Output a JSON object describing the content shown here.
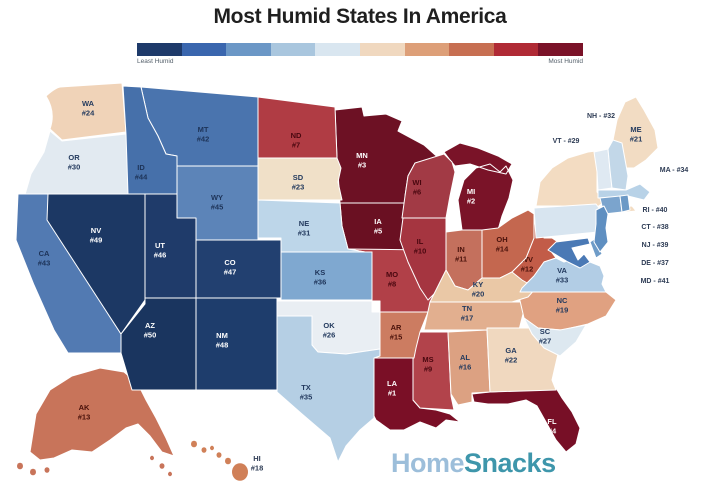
{
  "title": "Most Humid States In America",
  "legend": {
    "least_label": "Least Humid",
    "most_label": "Most Humid",
    "colors": [
      "#1e3a6a",
      "#3a66ae",
      "#6b97c6",
      "#a9c6de",
      "#d9e6f0",
      "#f0d8bf",
      "#dd9f78",
      "#c76f52",
      "#b02a35",
      "#7a1228"
    ]
  },
  "watermark": {
    "home": "Home",
    "snacks": "Snacks",
    "home_color": "#9cbeda",
    "snacks_color": "#3e96ab"
  },
  "map": {
    "states": [
      {
        "abbr": "LA",
        "rank": 1,
        "fill": "#7a0f26",
        "label_color": "#ffffff",
        "label": "inside"
      },
      {
        "abbr": "MI",
        "rank": 2,
        "fill": "#7a1328",
        "label_color": "#ffffff",
        "label": "inside"
      },
      {
        "abbr": "MN",
        "rank": 3,
        "fill": "#6d1124",
        "label_color": "#ffffff",
        "label": "inside"
      },
      {
        "abbr": "FL",
        "rank": 4,
        "fill": "#770f26",
        "label_color": "#ffffff",
        "label": "inside"
      },
      {
        "abbr": "IA",
        "rank": 5,
        "fill": "#6a1022",
        "label_color": "#ffffff",
        "label": "inside"
      },
      {
        "abbr": "WI",
        "rank": 6,
        "fill": "#a23a45",
        "label_color": "#49070f",
        "label": "inside"
      },
      {
        "abbr": "ND",
        "rank": 7,
        "fill": "#b03c44",
        "label_color": "#49070f",
        "label": "inside"
      },
      {
        "abbr": "MO",
        "rank": 8,
        "fill": "#b14048",
        "label_color": "#49070f",
        "label": "inside"
      },
      {
        "abbr": "MS",
        "rank": 9,
        "fill": "#b2434b",
        "label_color": "#49070f",
        "label": "inside"
      },
      {
        "abbr": "IL",
        "rank": 10,
        "fill": "#a53540",
        "label_color": "#49070f",
        "label": "inside"
      },
      {
        "abbr": "IN",
        "rank": 11,
        "fill": "#c4705d",
        "label_color": "#4a120b",
        "label": "inside"
      },
      {
        "abbr": "WV",
        "rank": 12,
        "fill": "#c25c48",
        "label_color": "#4a120b",
        "label": "inside"
      },
      {
        "abbr": "AK",
        "rank": 13,
        "fill": "#c8745a",
        "label_color": "#4a120b",
        "label": "inside"
      },
      {
        "abbr": "OH",
        "rank": 14,
        "fill": "#c4674f",
        "label_color": "#4a120b",
        "label": "inside"
      },
      {
        "abbr": "AR",
        "rank": 15,
        "fill": "#cc7c61",
        "label_color": "#4a120b",
        "label": "inside"
      },
      {
        "abbr": "AL",
        "rank": 16,
        "fill": "#dca182",
        "label_color": "#233a5e",
        "label": "inside"
      },
      {
        "abbr": "TN",
        "rank": 17,
        "fill": "#e2af8f",
        "label_color": "#233a5e",
        "label": "inside"
      },
      {
        "abbr": "HI",
        "rank": 18,
        "fill": "#d08058",
        "label_color": "#2e3c55",
        "label": "inside"
      },
      {
        "abbr": "NC",
        "rank": 19,
        "fill": "#e0a181",
        "label_color": "#233a5e",
        "label": "inside"
      },
      {
        "abbr": "KY",
        "rank": 20,
        "fill": "#eac8a6",
        "label_color": "#233a5e",
        "label": "inside"
      },
      {
        "abbr": "ME",
        "rank": 21,
        "fill": "#f2dcc3",
        "label_color": "#233a5e",
        "label": "inside"
      },
      {
        "abbr": "GA",
        "rank": 22,
        "fill": "#f0d8bf",
        "label_color": "#233a5e",
        "label": "inside"
      },
      {
        "abbr": "SD",
        "rank": 23,
        "fill": "#f0e0c8",
        "label_color": "#233a5e",
        "label": "inside"
      },
      {
        "abbr": "WA",
        "rank": 24,
        "fill": "#f0d3b8",
        "label_color": "#233a5e",
        "label": "inside"
      },
      {
        "abbr": "NY",
        "rank": 25,
        "fill": "#f3dcc2",
        "label_color": "#233a5e",
        "label": "inside"
      },
      {
        "abbr": "OK",
        "rank": 26,
        "fill": "#e9eef3",
        "label_color": "#233a5e",
        "label": "inside"
      },
      {
        "abbr": "SC",
        "rank": 27,
        "fill": "#dde8f0",
        "label_color": "#233a5e",
        "label": "inside"
      },
      {
        "abbr": "PA",
        "rank": 28,
        "fill": "#d8e5f0",
        "label_color": "#233a5e",
        "label": "inside"
      },
      {
        "abbr": "VT",
        "rank": 29,
        "fill": "#dfe9f2",
        "label_color": "#2e3c55",
        "label": "outside"
      },
      {
        "abbr": "OR",
        "rank": 30,
        "fill": "#e2eaf1",
        "label_color": "#233a5e",
        "label": "inside"
      },
      {
        "abbr": "NE",
        "rank": 31,
        "fill": "#bdd6e9",
        "label_color": "#233a5e",
        "label": "inside"
      },
      {
        "abbr": "NH",
        "rank": 32,
        "fill": "#c2d7e8",
        "label_color": "#2e3c55",
        "label": "outside"
      },
      {
        "abbr": "VA",
        "rank": 33,
        "fill": "#b2cde5",
        "label_color": "#233a5e",
        "label": "inside"
      },
      {
        "abbr": "MA",
        "rank": 34,
        "fill": "#b8d2e7",
        "label_color": "#2e3c55",
        "label": "outside"
      },
      {
        "abbr": "TX",
        "rank": 35,
        "fill": "#b5cfe4",
        "label_color": "#233a5e",
        "label": "inside"
      },
      {
        "abbr": "KS",
        "rank": 36,
        "fill": "#7fa8d0",
        "label_color": "#1d3358",
        "label": "inside"
      },
      {
        "abbr": "DE",
        "rank": 37,
        "fill": "#6f9cc8",
        "label_color": "#2e3c55",
        "label": "outside"
      },
      {
        "abbr": "CT",
        "rank": 38,
        "fill": "#7ba4cd",
        "label_color": "#2e3c55",
        "label": "outside"
      },
      {
        "abbr": "NJ",
        "rank": 39,
        "fill": "#5f8fc1",
        "label_color": "#2e3c55",
        "label": "outside"
      },
      {
        "abbr": "RI",
        "rank": 40,
        "fill": "#6b99c6",
        "label_color": "#2e3c55",
        "label": "outside"
      },
      {
        "abbr": "MD",
        "rank": 41,
        "fill": "#4a79b5",
        "label_color": "#2e3c55",
        "label": "outside"
      },
      {
        "abbr": "MT",
        "rank": 42,
        "fill": "#4a74ae",
        "label_color": "#1d3358",
        "label": "inside"
      },
      {
        "abbr": "CA",
        "rank": 43,
        "fill": "#527ab2",
        "label_color": "#1d3358",
        "label": "inside"
      },
      {
        "abbr": "ID",
        "rank": 44,
        "fill": "#4670aa",
        "label_color": "#1d3358",
        "label": "inside"
      },
      {
        "abbr": "WY",
        "rank": 45,
        "fill": "#5c84b8",
        "label_color": "#1d3358",
        "label": "inside"
      },
      {
        "abbr": "UT",
        "rank": 46,
        "fill": "#1f3b6a",
        "label_color": "#ffffff",
        "label": "inside"
      },
      {
        "abbr": "CO",
        "rank": 47,
        "fill": "#224070",
        "label_color": "#ffffff",
        "label": "inside"
      },
      {
        "abbr": "NM",
        "rank": 48,
        "fill": "#1e3d6c",
        "label_color": "#ffffff",
        "label": "inside"
      },
      {
        "abbr": "NV",
        "rank": 49,
        "fill": "#1c3864",
        "label_color": "#ffffff",
        "label": "inside"
      },
      {
        "abbr": "AZ",
        "rank": 50,
        "fill": "#1a355f",
        "label_color": "#ffffff",
        "label": "inside"
      }
    ]
  }
}
